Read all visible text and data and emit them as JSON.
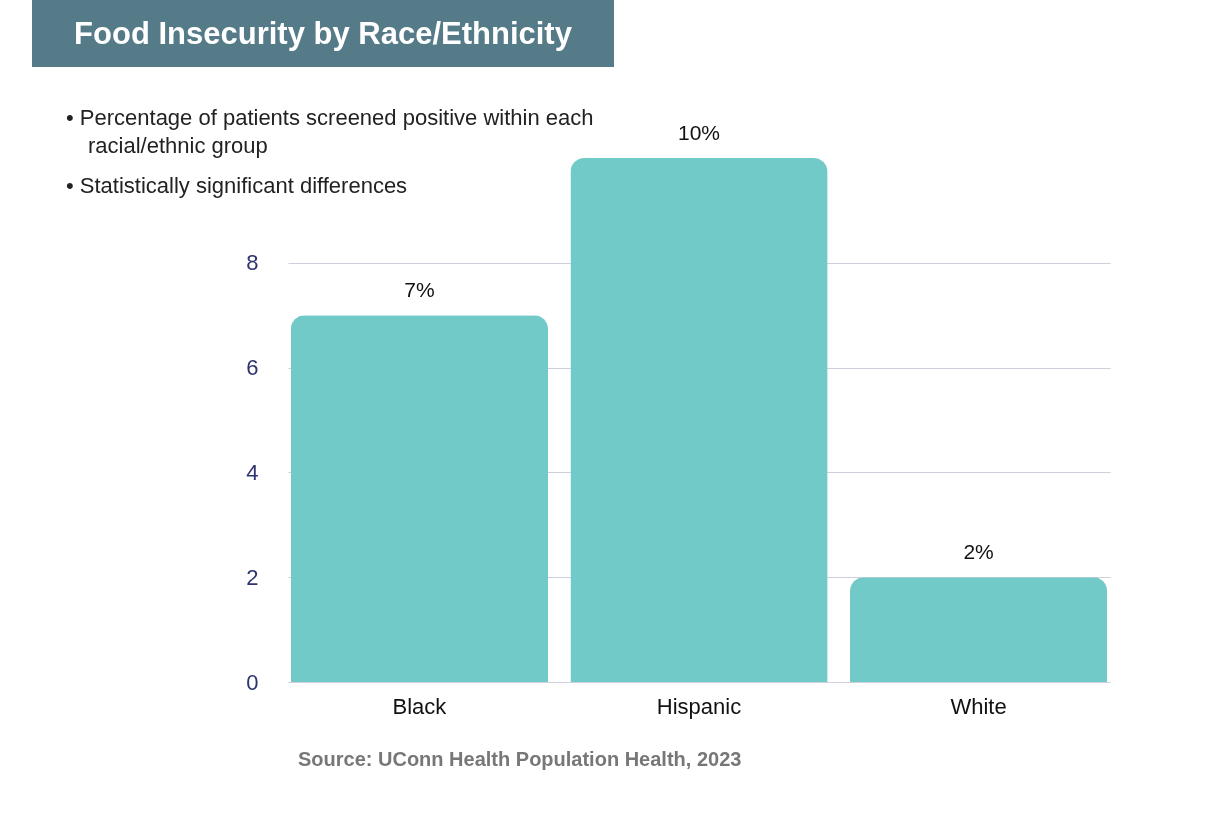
{
  "chart_data": {
    "type": "bar",
    "title": "Food Insecurity by Race/Ethnicity",
    "annotations": [
      "• Percentage of patients screened positive within each racial/ethnic group",
      "• Statistically significant differences",
      "Source: UConn Health Population Health, 2023"
    ],
    "categories": [
      "Black",
      "Hispanic",
      "White"
    ],
    "values": [
      7,
      10,
      2
    ],
    "value_labels": [
      "7%",
      "10%",
      "2%"
    ],
    "color": "#72cac8",
    "ylim": [
      0,
      10
    ],
    "yticks": [
      0,
      2,
      4,
      6,
      8
    ],
    "grid": "y"
  }
}
